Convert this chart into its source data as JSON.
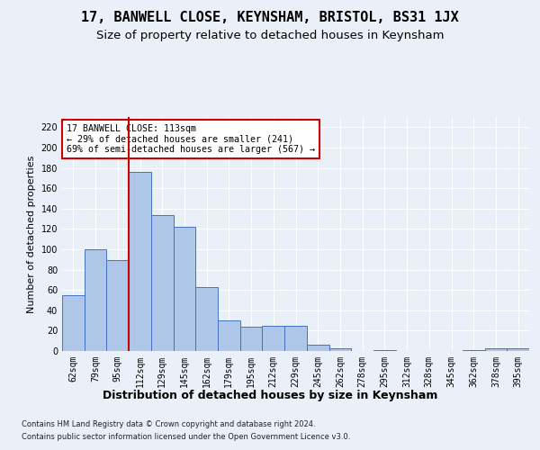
{
  "title": "17, BANWELL CLOSE, KEYNSHAM, BRISTOL, BS31 1JX",
  "subtitle": "Size of property relative to detached houses in Keynsham",
  "xlabel_dist": "Distribution of detached houses by size in Keynsham",
  "ylabel": "Number of detached properties",
  "categories": [
    "62sqm",
    "79sqm",
    "95sqm",
    "112sqm",
    "129sqm",
    "145sqm",
    "162sqm",
    "179sqm",
    "195sqm",
    "212sqm",
    "229sqm",
    "245sqm",
    "262sqm",
    "278sqm",
    "295sqm",
    "312sqm",
    "328sqm",
    "345sqm",
    "362sqm",
    "378sqm",
    "395sqm"
  ],
  "values": [
    55,
    100,
    89,
    176,
    134,
    122,
    63,
    30,
    24,
    25,
    25,
    6,
    3,
    0,
    1,
    0,
    0,
    0,
    1,
    3,
    3
  ],
  "bar_color": "#aec6e8",
  "bar_edge_color": "#4472c4",
  "vline_x_index": 3,
  "vline_color": "#cc0000",
  "annotation_text": "17 BANWELL CLOSE: 113sqm\n← 29% of detached houses are smaller (241)\n69% of semi-detached houses are larger (567) →",
  "annotation_box_color": "#ffffff",
  "annotation_box_edge": "#cc0000",
  "bg_color": "#eaf0f8",
  "grid_color": "#ffffff",
  "footnote1": "Contains HM Land Registry data © Crown copyright and database right 2024.",
  "footnote2": "Contains public sector information licensed under the Open Government Licence v3.0.",
  "ylim": [
    0,
    230
  ],
  "yticks": [
    0,
    20,
    40,
    60,
    80,
    100,
    120,
    140,
    160,
    180,
    200,
    220
  ],
  "title_fontsize": 11,
  "subtitle_fontsize": 9.5,
  "axis_label_fontsize": 8,
  "tick_fontsize": 7,
  "footnote_fontsize": 6
}
